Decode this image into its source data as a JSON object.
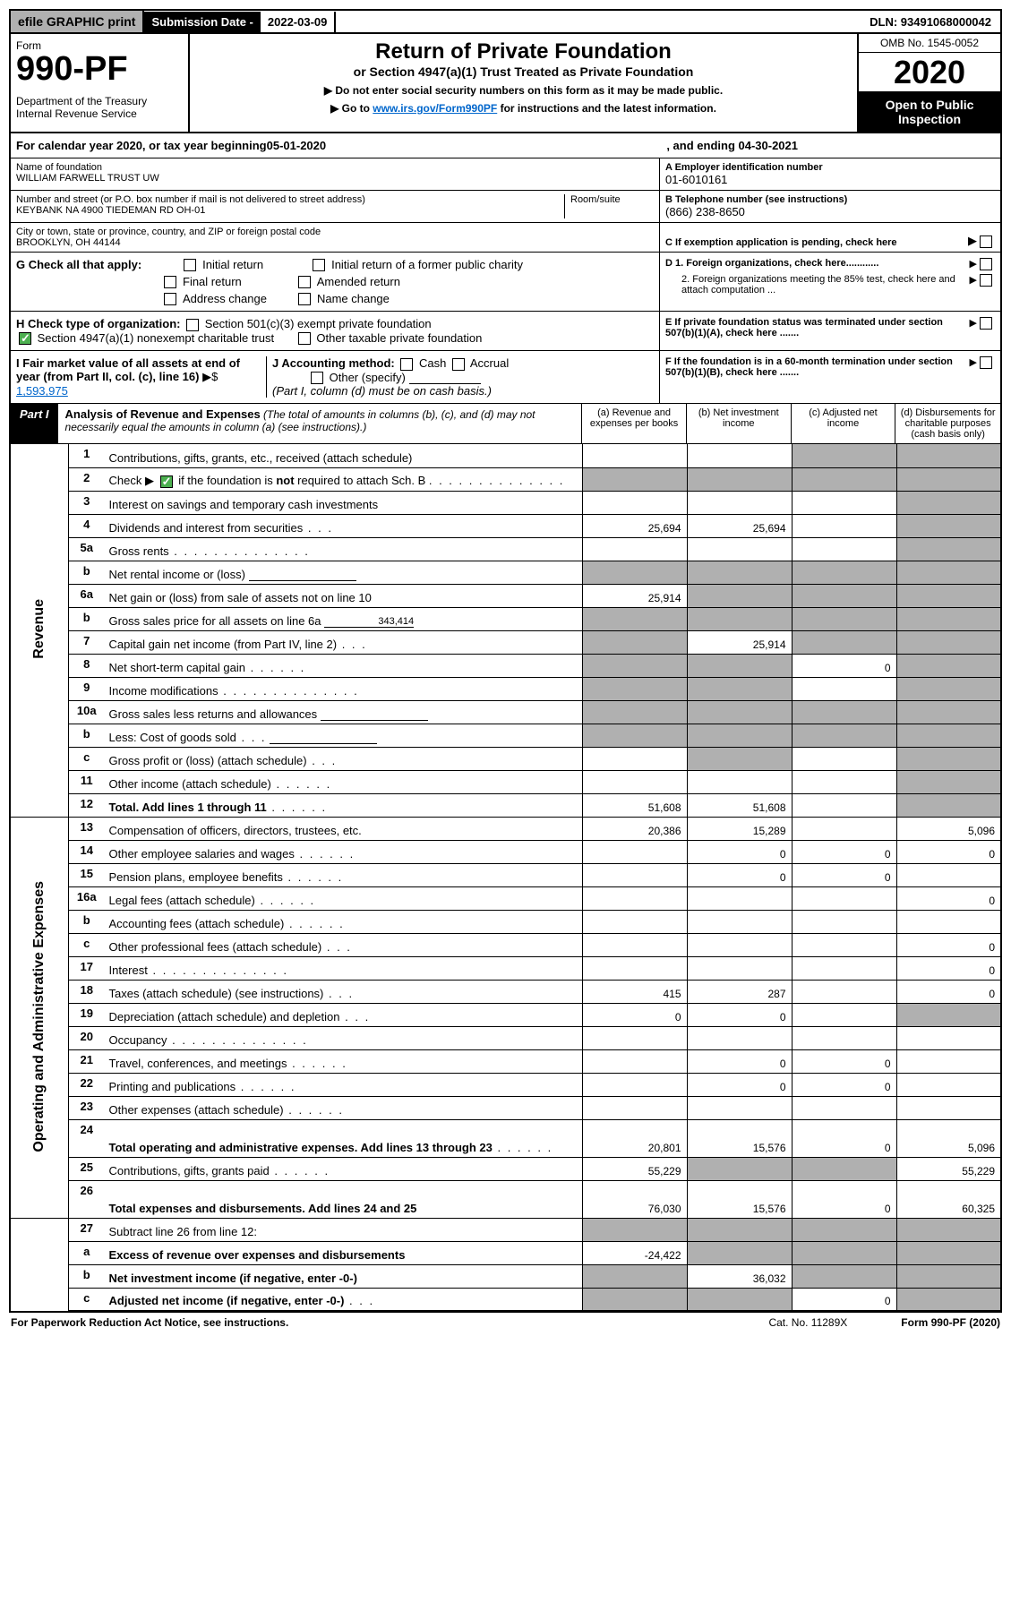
{
  "topbar": {
    "efile": "efile GRAPHIC print",
    "subdate_label": "Submission Date - ",
    "subdate_value": "2022-03-09",
    "dln": "DLN: 93491068000042"
  },
  "header": {
    "form": "Form",
    "formno": "990-PF",
    "dept": "Department of the Treasury\nInternal Revenue Service",
    "title": "Return of Private Foundation",
    "subtitle": "or Section 4947(a)(1) Trust Treated as Private Foundation",
    "note1": "▶ Do not enter social security numbers on this form as it may be made public.",
    "note2_pre": "▶ Go to ",
    "note2_link": "www.irs.gov/Form990PF",
    "note2_post": " for instructions and the latest information.",
    "omb": "OMB No. 1545-0052",
    "year": "2020",
    "open": "Open to Public Inspection"
  },
  "taxyear": {
    "pre": "For calendar year 2020, or tax year beginning ",
    "begin": "05-01-2020",
    "mid": ", and ending ",
    "end": "04-30-2021"
  },
  "info": {
    "name_lbl": "Name of foundation",
    "name": "WILLIAM FARWELL TRUST UW",
    "ein_lbl": "A Employer identification number",
    "ein": "01-6010161",
    "addr_lbl": "Number and street (or P.O. box number if mail is not delivered to street address)",
    "room_lbl": "Room/suite",
    "addr": "KEYBANK NA 4900 TIEDEMAN RD OH-01",
    "phone_lbl": "B Telephone number (see instructions)",
    "phone": "(866) 238-8650",
    "city_lbl": "City or town, state or province, country, and ZIP or foreign postal code",
    "city": "BROOKLYN, OH  44144",
    "c_lbl": "C If exemption application is pending, check here",
    "g_lbl": "G Check all that apply:",
    "g_opts": [
      "Initial return",
      "Final return",
      "Address change",
      "Initial return of a former public charity",
      "Amended return",
      "Name change"
    ],
    "d1": "D 1. Foreign organizations, check here............",
    "d2": "2. Foreign organizations meeting the 85% test, check here and attach computation ...",
    "h_lbl": "H Check type of organization:",
    "h1": "Section 501(c)(3) exempt private foundation",
    "h2": "Section 4947(a)(1) nonexempt charitable trust",
    "h3": "Other taxable private foundation",
    "e_lbl": "E  If private foundation status was terminated under section 507(b)(1)(A), check here .......",
    "i_lbl": "I Fair market value of all assets at end of year (from Part II, col. (c), line 16)",
    "i_val": "1,593,975",
    "j_lbl": "J Accounting method:",
    "j_cash": "Cash",
    "j_accrual": "Accrual",
    "j_other": "Other (specify)",
    "j_note": "(Part I, column (d) must be on cash basis.)",
    "f_lbl": "F  If the foundation is in a 60-month termination under section 507(b)(1)(B), check here .......",
    "arrow": "▶",
    "dollar": "▶$"
  },
  "part1": {
    "tag": "Part I",
    "title": "Analysis of Revenue and Expenses",
    "note": " (The total of amounts in columns (b), (c), and (d) may not necessarily equal the amounts in column (a) (see instructions).)",
    "cols": {
      "a": "(a)   Revenue and expenses per books",
      "b": "(b)   Net investment income",
      "c": "(c)   Adjusted net income",
      "d": "(d)   Disbursements for charitable purposes (cash basis only)"
    }
  },
  "rotated": {
    "rev": "Revenue",
    "exp": "Operating and Administrative Expenses"
  },
  "rows": [
    {
      "n": "1",
      "l": "Contributions, gifts, grants, etc., received (attach schedule)",
      "a": "",
      "b": "",
      "c": "s",
      "d": "s"
    },
    {
      "n": "2",
      "l": "Check ▶ ☑ if the foundation is not required to attach Sch. B",
      "nb": true,
      "a": "s",
      "b": "s",
      "c": "s",
      "d": "s",
      "dots": "mid",
      "special_check": true
    },
    {
      "n": "3",
      "l": "Interest on savings and temporary cash investments",
      "a": "",
      "b": "",
      "c": "",
      "d": "s"
    },
    {
      "n": "4",
      "l": "Dividends and interest from securities",
      "dots": "xs",
      "a": "25,694",
      "b": "25,694",
      "c": "",
      "d": "s"
    },
    {
      "n": "5a",
      "l": "Gross rents",
      "dots": "mid",
      "a": "",
      "b": "",
      "c": "",
      "d": "s"
    },
    {
      "n": "b",
      "l": "Net rental income or (loss)",
      "inline": true,
      "a": "s",
      "b": "s",
      "c": "s",
      "d": "s"
    },
    {
      "n": "6a",
      "l": "Net gain or (loss) from sale of assets not on line 10",
      "a": "25,914",
      "b": "s",
      "c": "s",
      "d": "s"
    },
    {
      "n": "b",
      "l": "Gross sales price for all assets on line 6a",
      "inline_val": "343,414",
      "a": "s",
      "b": "s",
      "c": "s",
      "d": "s"
    },
    {
      "n": "7",
      "l": "Capital gain net income (from Part IV, line 2)",
      "dots": "xs",
      "a": "s",
      "b": "25,914",
      "c": "s",
      "d": "s"
    },
    {
      "n": "8",
      "l": "Net short-term capital gain",
      "dots": "s",
      "a": "s",
      "b": "s",
      "c": "0",
      "d": "s"
    },
    {
      "n": "9",
      "l": "Income modifications",
      "dots": "mid",
      "a": "s",
      "b": "s",
      "c": "",
      "d": "s"
    },
    {
      "n": "10a",
      "l": "Gross sales less returns and allowances",
      "inline": true,
      "a": "s",
      "b": "s",
      "c": "s",
      "d": "s"
    },
    {
      "n": "b",
      "l": "Less: Cost of goods sold",
      "dots": "xs",
      "inline": true,
      "a": "s",
      "b": "s",
      "c": "s",
      "d": "s"
    },
    {
      "n": "c",
      "l": "Gross profit or (loss) (attach schedule)",
      "dots": "xs",
      "a": "",
      "b": "s",
      "c": "",
      "d": "s"
    },
    {
      "n": "11",
      "l": "Other income (attach schedule)",
      "dots": "s",
      "a": "",
      "b": "",
      "c": "",
      "d": "s"
    },
    {
      "n": "12",
      "l": "Total. Add lines 1 through 11",
      "bold": true,
      "dots": "s",
      "a": "51,608",
      "b": "51,608",
      "c": "",
      "d": "s"
    },
    {
      "n": "13",
      "l": "Compensation of officers, directors, trustees, etc.",
      "a": "20,386",
      "b": "15,289",
      "c": "",
      "d": "5,096",
      "sec": true
    },
    {
      "n": "14",
      "l": "Other employee salaries and wages",
      "dots": "s",
      "a": "",
      "b": "0",
      "c": "0",
      "d": "0"
    },
    {
      "n": "15",
      "l": "Pension plans, employee benefits",
      "dots": "s",
      "a": "",
      "b": "0",
      "c": "0",
      "d": ""
    },
    {
      "n": "16a",
      "l": "Legal fees (attach schedule)",
      "dots": "s",
      "a": "",
      "b": "",
      "c": "",
      "d": "0"
    },
    {
      "n": "b",
      "l": "Accounting fees (attach schedule)",
      "dots": "s",
      "a": "",
      "b": "",
      "c": "",
      "d": ""
    },
    {
      "n": "c",
      "l": "Other professional fees (attach schedule)",
      "dots": "xs",
      "a": "",
      "b": "",
      "c": "",
      "d": "0"
    },
    {
      "n": "17",
      "l": "Interest",
      "dots": "mid",
      "a": "",
      "b": "",
      "c": "",
      "d": "0"
    },
    {
      "n": "18",
      "l": "Taxes (attach schedule) (see instructions)",
      "dots": "xs",
      "a": "415",
      "b": "287",
      "c": "",
      "d": "0"
    },
    {
      "n": "19",
      "l": "Depreciation (attach schedule) and depletion",
      "dots": "xs",
      "a": "0",
      "b": "0",
      "c": "",
      "d": "s"
    },
    {
      "n": "20",
      "l": "Occupancy",
      "dots": "mid",
      "a": "",
      "b": "",
      "c": "",
      "d": ""
    },
    {
      "n": "21",
      "l": "Travel, conferences, and meetings",
      "dots": "s",
      "a": "",
      "b": "0",
      "c": "0",
      "d": ""
    },
    {
      "n": "22",
      "l": "Printing and publications",
      "dots": "s",
      "a": "",
      "b": "0",
      "c": "0",
      "d": ""
    },
    {
      "n": "23",
      "l": "Other expenses (attach schedule)",
      "dots": "s",
      "a": "",
      "b": "",
      "c": "",
      "d": ""
    },
    {
      "n": "24",
      "l": "Total operating and administrative expenses. Add lines 13 through 23",
      "bold": true,
      "dots": "s",
      "a": "20,801",
      "b": "15,576",
      "c": "0",
      "d": "5,096",
      "tall": true
    },
    {
      "n": "25",
      "l": "Contributions, gifts, grants paid",
      "dots": "s",
      "a": "55,229",
      "b": "s",
      "c": "s",
      "d": "55,229"
    },
    {
      "n": "26",
      "l": "Total expenses and disbursements. Add lines 24 and 25",
      "bold": true,
      "a": "76,030",
      "b": "15,576",
      "c": "0",
      "d": "60,325",
      "tall": true
    },
    {
      "n": "27",
      "l": "Subtract line 26 from line 12:",
      "a": "s",
      "b": "s",
      "c": "s",
      "d": "s",
      "sec2": true
    },
    {
      "n": "a",
      "l": "Excess of revenue over expenses and disbursements",
      "bold": true,
      "a": "-24,422",
      "b": "s",
      "c": "s",
      "d": "s"
    },
    {
      "n": "b",
      "l": "Net investment income (if negative, enter -0-)",
      "bold": true,
      "a": "s",
      "b": "36,032",
      "c": "s",
      "d": "s"
    },
    {
      "n": "c",
      "l": "Adjusted net income (if negative, enter -0-)",
      "bold": true,
      "dots": "xs",
      "a": "s",
      "b": "s",
      "c": "0",
      "d": "s",
      "last": true
    }
  ],
  "footer": {
    "l": "For Paperwork Reduction Act Notice, see instructions.",
    "c": "Cat. No. 11289X",
    "r": "Form 990-PF (2020)"
  }
}
